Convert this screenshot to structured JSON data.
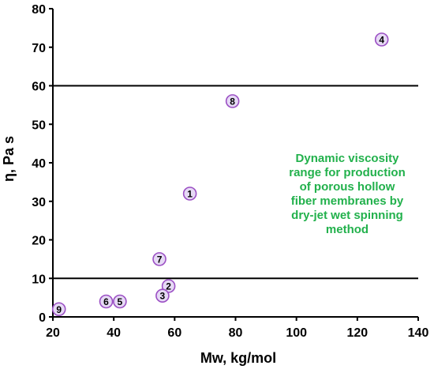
{
  "chart_data": {
    "type": "scatter",
    "title": "",
    "xlabel": "Mw, kg/mol",
    "ylabel": "η, Pa s",
    "xlim": [
      20,
      140
    ],
    "ylim": [
      0,
      80
    ],
    "xticks": [
      "20",
      "40",
      "60",
      "80",
      "100",
      "120",
      "140"
    ],
    "yticks": [
      "0",
      "10",
      "20",
      "30",
      "40",
      "50",
      "60",
      "70",
      "80"
    ],
    "grid": false,
    "reference_lines_y": [
      10,
      60
    ],
    "points": [
      {
        "label": "1",
        "x": 65,
        "y": 32
      },
      {
        "label": "2",
        "x": 58,
        "y": 8
      },
      {
        "label": "3",
        "x": 56,
        "y": 5.5
      },
      {
        "label": "4",
        "x": 128,
        "y": 72
      },
      {
        "label": "5",
        "x": 42,
        "y": 4
      },
      {
        "label": "6",
        "x": 37.5,
        "y": 4
      },
      {
        "label": "7",
        "x": 55,
        "y": 15
      },
      {
        "label": "8",
        "x": 79,
        "y": 56
      },
      {
        "label": "9",
        "x": 22,
        "y": 2
      }
    ],
    "annotation": {
      "lines": [
        "Dynamic viscosity",
        "range for production",
        "of porous hollow",
        "fiber membranes by",
        "dry-jet wet spinning",
        "method"
      ],
      "color": "#22b14c"
    },
    "marker_edge_color": "#9b4fc4",
    "marker_fill_color": "#e6d9f5"
  }
}
